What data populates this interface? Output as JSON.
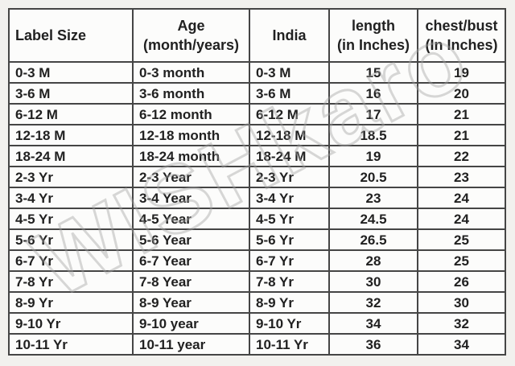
{
  "watermark": "WISHkaro",
  "colors": {
    "background": "#f2f1ee",
    "cell_background": "#fcfcfb",
    "grid_border": "#454545",
    "text": "#212121",
    "watermark_outline": "#a3a3a3"
  },
  "table": {
    "headers": [
      {
        "line1": "Label Size",
        "line2": ""
      },
      {
        "line1": "Age",
        "line2": "(month/years)"
      },
      {
        "line1": "India",
        "line2": ""
      },
      {
        "line1": "length",
        "line2": "(in Inches)"
      },
      {
        "line1": "chest/bust",
        "line2": "(In Inches)"
      }
    ],
    "rows": [
      [
        "0-3 M",
        "0-3 month",
        "0-3 M",
        "15",
        "19"
      ],
      [
        "3-6 M",
        "3-6 month",
        "3-6 M",
        "16",
        "20"
      ],
      [
        "6-12 M",
        "6-12 month",
        "6-12 M",
        "17",
        "21"
      ],
      [
        "12-18 M",
        "12-18 month",
        "12-18 M",
        "18.5",
        "21"
      ],
      [
        "18-24 M",
        "18-24 month",
        "18-24 M",
        "19",
        "22"
      ],
      [
        "2-3 Yr",
        "2-3 Year",
        "2-3 Yr",
        "20.5",
        "23"
      ],
      [
        "3-4 Yr",
        "3-4 Year",
        "3-4 Yr",
        "23",
        "24"
      ],
      [
        "4-5 Yr",
        "4-5 Year",
        "4-5 Yr",
        "24.5",
        "24"
      ],
      [
        "5-6 Yr",
        "5-6 Year",
        "5-6 Yr",
        "26.5",
        "25"
      ],
      [
        "6-7 Yr",
        "6-7 Year",
        "6-7 Yr",
        "28",
        "25"
      ],
      [
        "7-8 Yr",
        "7-8 Year",
        "7-8 Yr",
        "30",
        "26"
      ],
      [
        "8-9 Yr",
        "8-9 Year",
        "8-9 Yr",
        "32",
        "30"
      ],
      [
        "9-10 Yr",
        "9-10 year",
        "9-10 Yr",
        "34",
        "32"
      ],
      [
        "10-11 Yr",
        "10-11 year",
        "10-11 Yr",
        "36",
        "34"
      ]
    ]
  }
}
